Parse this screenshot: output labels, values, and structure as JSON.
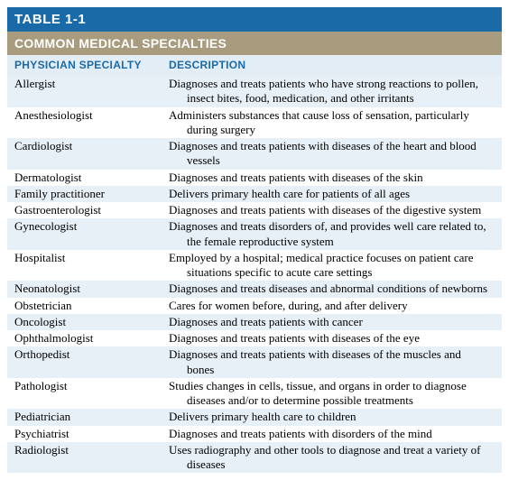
{
  "title": "TABLE 1-1",
  "subhead": "COMMON MEDICAL SPECIALTIES",
  "columns": {
    "specialty": "PHYSICIAN SPECIALTY",
    "description": "DESCRIPTION"
  },
  "colors": {
    "title_bg": "#1a6aa8",
    "subhead_bg": "#a89b7e",
    "header_bg": "#e3edf5",
    "row_even_bg": "#e8f0f7",
    "row_odd_bg": "#ffffff",
    "text": "#000000",
    "header_text": "#1a6aa8"
  },
  "rows": [
    {
      "specialty": "Allergist",
      "desc": "Diagnoses and treats patients who have strong reactions to pollen,",
      "cont": "insect bites, food, medication, and other irritants"
    },
    {
      "specialty": "Anesthesiologist",
      "desc": "Administers substances that cause loss of sensation, particularly",
      "cont": "during surgery"
    },
    {
      "specialty": "Cardiologist",
      "desc": "Diagnoses and treats patients with diseases of the heart and blood",
      "cont": "vessels"
    },
    {
      "specialty": "Dermatologist",
      "desc": "Diagnoses and treats patients with diseases of the skin",
      "cont": ""
    },
    {
      "specialty": "Family practitioner",
      "desc": "Delivers primary health care for patients of all ages",
      "cont": ""
    },
    {
      "specialty": "Gastroenterologist",
      "desc": "Diagnoses and treats patients with diseases of the digestive system",
      "cont": ""
    },
    {
      "specialty": "Gynecologist",
      "desc": "Diagnoses and treats disorders of, and provides well care related to,",
      "cont": "the female reproductive system"
    },
    {
      "specialty": "Hospitalist",
      "desc": "Employed by a hospital; medical practice focuses on patient care",
      "cont": "situations specific to acute care settings"
    },
    {
      "specialty": "Neonatologist",
      "desc": "Diagnoses and treats diseases and abnormal conditions of newborns",
      "cont": ""
    },
    {
      "specialty": "Obstetrician",
      "desc": "Cares for women before, during, and after delivery",
      "cont": ""
    },
    {
      "specialty": "Oncologist",
      "desc": "Diagnoses and treats patients with cancer",
      "cont": ""
    },
    {
      "specialty": "Ophthalmologist",
      "desc": "Diagnoses and treats patients with diseases of the eye",
      "cont": ""
    },
    {
      "specialty": "Orthopedist",
      "desc": "Diagnoses and treats patients with diseases of the muscles and",
      "cont": "bones"
    },
    {
      "specialty": "Pathologist",
      "desc": "Studies changes in cells, tissue, and organs in order to diagnose",
      "cont": "diseases and/or to determine possible treatments"
    },
    {
      "specialty": "Pediatrician",
      "desc": "Delivers primary health care to children",
      "cont": ""
    },
    {
      "specialty": "Psychiatrist",
      "desc": "Diagnoses and treats patients with disorders of the mind",
      "cont": ""
    },
    {
      "specialty": "Radiologist",
      "desc": "Uses radiography and other tools to diagnose and treat a variety of",
      "cont": "diseases"
    }
  ]
}
